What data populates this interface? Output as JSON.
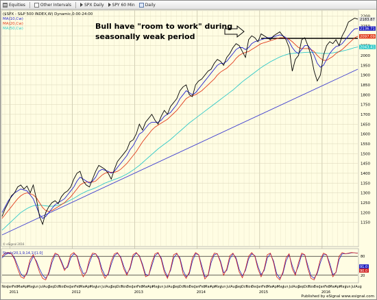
{
  "toolbar": {
    "items": [
      {
        "icon": "list-icon",
        "label": "Equities"
      },
      {
        "icon": "interval-icon",
        "label": "Other Intervals"
      },
      {
        "icon": "chart-icon",
        "label": "SPX Daily"
      },
      {
        "icon": "chart-icon",
        "label": "SPY 60 Min"
      },
      {
        "icon": "calendar-icon",
        "label": "Daily"
      }
    ]
  },
  "legend": {
    "symbol": "($SPX - S&P 500 INDEX,W) Dynamic,0:00-24:00",
    "ma1": "MA(10,Cw)",
    "ma2": "MA(20,Cw)",
    "ma3": "MA(50,Cw)"
  },
  "annotation": {
    "line1": "Bull have \"room to work\" during",
    "line2": "seasonally weak period"
  },
  "copyright": "© eSignal 2016",
  "oscillator_label": "Stoch(20,1,9,14,1)[1.0]",
  "footer": "Published by eSignal  www.esignal.com",
  "colors": {
    "price": "#000000",
    "ma10": "#2020d0",
    "ma20": "#e03a1a",
    "ma50": "#2ec8c8",
    "trendline": "#3a3ad0",
    "osc_k": "#d02020",
    "osc_d": "#2020c0",
    "background": "#fffde3"
  },
  "chart_data": {
    "type": "line",
    "y_axis_ticks": [
      1150,
      1200,
      1250,
      1300,
      1350,
      1400,
      1450,
      1500,
      1550,
      1600,
      1650,
      1700,
      1750,
      1800,
      1850,
      1900,
      1950,
      2000,
      2050,
      2100,
      2150,
      2200
    ],
    "ylim": [
      1030,
      2230
    ],
    "x_month_labels": [
      "Nov",
      "Jan",
      "Feb",
      "Mar",
      "Apr",
      "May",
      "Jun",
      "Jul",
      "Aug",
      "Sep",
      "Oct",
      "Nov",
      "Dec",
      "Jan",
      "Feb",
      "Mar",
      "Apr",
      "May",
      "Jun",
      "Jul",
      "Aug",
      "Sep",
      "Oct",
      "Nov",
      "Dec",
      "Jan",
      "Feb",
      "Mar",
      "Apr",
      "May",
      "Jun",
      "Jul",
      "Aug",
      "Sep",
      "Oct",
      "Nov",
      "Dec",
      "Jan",
      "Feb",
      "Mar",
      "Apr",
      "May",
      "Jun",
      "Jul",
      "Aug",
      "Sep",
      "Oct",
      "Nov",
      "Dec",
      "Jan",
      "Feb",
      "Mar",
      "Apr",
      "May",
      "Jun",
      "Jul",
      "Aug",
      "Sep",
      "Oct",
      "Nov",
      "Dec",
      "Jan",
      "Feb",
      "Mar",
      "Apr",
      "May",
      "Jun",
      "Jul",
      "Aug"
    ],
    "x_year_labels": [
      "2011",
      "2012",
      "2013",
      "2014",
      "2015",
      "2016"
    ],
    "price_badges": [
      {
        "label": "2183.87",
        "color": "#e9e9e9",
        "text_color": "#000000",
        "value": 2184
      },
      {
        "label": "2136.71",
        "color": "#2020c0",
        "text_color": "#ffffff",
        "value": 2137
      },
      {
        "label": "2097.09",
        "color": "#e03a1a",
        "text_color": "#ffffff",
        "value": 2097
      },
      {
        "label": "2043.41",
        "color": "#2ec8c8",
        "text_color": "#ffffff",
        "value": 2043
      }
    ],
    "series": [
      {
        "name": "$SPX",
        "values": [
          1180,
          1220,
          1250,
          1285,
          1300,
          1330,
          1340,
          1320,
          1335,
          1300,
          1340,
          1270,
          1180,
          1140,
          1200,
          1230,
          1250,
          1260,
          1245,
          1280,
          1300,
          1310,
          1330,
          1370,
          1400,
          1410,
          1360,
          1340,
          1330,
          1370,
          1410,
          1440,
          1430,
          1420,
          1400,
          1370,
          1420,
          1460,
          1480,
          1500,
          1520,
          1560,
          1570,
          1600,
          1650,
          1620,
          1660,
          1680,
          1700,
          1670,
          1650,
          1690,
          1720,
          1700,
          1740,
          1760,
          1780,
          1820,
          1840,
          1850,
          1800,
          1790,
          1850,
          1870,
          1880,
          1900,
          1920,
          1930,
          1960,
          1980,
          1970,
          1950,
          1990,
          2010,
          2040,
          2060,
          2050,
          2020,
          1990,
          2080,
          2100,
          2090,
          2070,
          2110,
          2100,
          2090,
          2080,
          2100,
          2110,
          2120,
          2100,
          2080,
          2040,
          1920,
          1980,
          2000,
          2080,
          2090,
          2050,
          2000,
          1920,
          1870,
          1900,
          2000,
          2050,
          2070,
          2060,
          2080,
          2050,
          2100,
          2130,
          2170,
          2180,
          2190,
          2185
        ]
      },
      {
        "name": "MA(10,Cw)",
        "values": [
          1200,
          1230,
          1260,
          1280,
          1300,
          1310,
          1320,
          1315,
          1310,
          1290,
          1270,
          1230,
          1190,
          1170,
          1180,
          1200,
          1220,
          1240,
          1250,
          1260,
          1270,
          1290,
          1310,
          1330,
          1360,
          1380,
          1370,
          1360,
          1350,
          1360,
          1380,
          1410,
          1420,
          1415,
          1410,
          1400,
          1410,
          1430,
          1450,
          1470,
          1490,
          1520,
          1540,
          1570,
          1600,
          1610,
          1630,
          1650,
          1660,
          1660,
          1660,
          1670,
          1690,
          1700,
          1710,
          1730,
          1750,
          1780,
          1800,
          1820,
          1810,
          1800,
          1810,
          1830,
          1850,
          1870,
          1890,
          1910,
          1930,
          1950,
          1960,
          1960,
          1970,
          1990,
          2010,
          2030,
          2040,
          2040,
          2030,
          2040,
          2060,
          2070,
          2075,
          2080,
          2085,
          2090,
          2090,
          2095,
          2100,
          2105,
          2100,
          2090,
          2070,
          2040,
          2020,
          2010,
          2030,
          2050,
          2050,
          2030,
          2000,
          1960,
          1940,
          1950,
          1980,
          2010,
          2030,
          2045,
          2050,
          2060,
          2080,
          2100,
          2120,
          2135,
          2137
        ]
      },
      {
        "name": "MA(20,Cw)",
        "values": [
          1170,
          1190,
          1210,
          1230,
          1250,
          1270,
          1285,
          1295,
          1300,
          1295,
          1290,
          1275,
          1250,
          1225,
          1210,
          1205,
          1210,
          1220,
          1230,
          1240,
          1250,
          1265,
          1280,
          1300,
          1320,
          1340,
          1350,
          1355,
          1355,
          1355,
          1360,
          1375,
          1390,
          1400,
          1405,
          1405,
          1405,
          1410,
          1420,
          1435,
          1450,
          1470,
          1490,
          1510,
          1535,
          1560,
          1580,
          1600,
          1620,
          1635,
          1645,
          1655,
          1665,
          1675,
          1690,
          1705,
          1720,
          1740,
          1760,
          1780,
          1790,
          1795,
          1800,
          1810,
          1820,
          1835,
          1850,
          1865,
          1880,
          1900,
          1915,
          1925,
          1935,
          1950,
          1965,
          1985,
          2000,
          2010,
          2015,
          2020,
          2030,
          2040,
          2050,
          2060,
          2065,
          2070,
          2075,
          2080,
          2085,
          2090,
          2090,
          2088,
          2082,
          2070,
          2055,
          2040,
          2035,
          2035,
          2035,
          2030,
          2020,
          2000,
          1985,
          1975,
          1975,
          1985,
          1995,
          2010,
          2020,
          2030,
          2045,
          2060,
          2075,
          2090,
          2097
        ]
      },
      {
        "name": "MA(50,Cw)",
        "values": [
          1110,
          1125,
          1140,
          1155,
          1170,
          1185,
          1200,
          1210,
          1220,
          1228,
          1234,
          1238,
          1238,
          1236,
          1234,
          1232,
          1232,
          1234,
          1238,
          1242,
          1248,
          1256,
          1264,
          1272,
          1282,
          1292,
          1300,
          1308,
          1314,
          1320,
          1326,
          1334,
          1342,
          1350,
          1356,
          1362,
          1368,
          1374,
          1380,
          1388,
          1396,
          1406,
          1416,
          1428,
          1440,
          1454,
          1468,
          1482,
          1496,
          1510,
          1524,
          1536,
          1548,
          1560,
          1572,
          1586,
          1600,
          1614,
          1628,
          1642,
          1656,
          1668,
          1680,
          1692,
          1704,
          1716,
          1728,
          1740,
          1752,
          1764,
          1776,
          1788,
          1800,
          1812,
          1824,
          1838,
          1852,
          1866,
          1878,
          1890,
          1902,
          1914,
          1926,
          1938,
          1948,
          1958,
          1968,
          1976,
          1984,
          1992,
          1998,
          2004,
          2008,
          2010,
          2012,
          2013,
          2014,
          2015,
          2016,
          2016,
          2015,
          2013,
          2011,
          2010,
          2010,
          2011,
          2013,
          2016,
          2019,
          2022,
          2026,
          2030,
          2035,
          2040,
          2043
        ]
      }
    ],
    "oscillator": {
      "ylim": [
        0,
        100
      ],
      "levels": [
        20,
        80
      ],
      "k": [
        80,
        90,
        92,
        88,
        70,
        40,
        15,
        10,
        30,
        70,
        85,
        60,
        30,
        10,
        5,
        30,
        70,
        90,
        85,
        60,
        35,
        50,
        85,
        92,
        80,
        40,
        15,
        30,
        70,
        90,
        88,
        70,
        30,
        10,
        25,
        65,
        88,
        92,
        75,
        40,
        20,
        45,
        85,
        92,
        80,
        50,
        15,
        20,
        60,
        88,
        92,
        70,
        30,
        10,
        40,
        85,
        90,
        70,
        25,
        10,
        30,
        75,
        92,
        85,
        40,
        8,
        20,
        70,
        90,
        88,
        60,
        20,
        40,
        82,
        90,
        70,
        30,
        12,
        40,
        80,
        92,
        80,
        40,
        15,
        40,
        85,
        90,
        60,
        15,
        5,
        30,
        75,
        88,
        40,
        20,
        60,
        90,
        85,
        40,
        10,
        5,
        30,
        70,
        90,
        85,
        50,
        15,
        30,
        80,
        92,
        88,
        90,
        92,
        91,
        90
      ],
      "d": [
        75,
        85,
        90,
        88,
        75,
        50,
        25,
        15,
        25,
        60,
        80,
        65,
        40,
        20,
        10,
        25,
        60,
        85,
        85,
        65,
        40,
        45,
        75,
        88,
        82,
        50,
        25,
        28,
        60,
        85,
        88,
        75,
        40,
        18,
        22,
        55,
        82,
        90,
        78,
        48,
        25,
        40,
        78,
        90,
        82,
        55,
        22,
        20,
        50,
        82,
        90,
        75,
        38,
        15,
        35,
        75,
        88,
        75,
        35,
        15,
        25,
        65,
        88,
        85,
        50,
        15,
        18,
        60,
        85,
        88,
        65,
        28,
        35,
        72,
        88,
        75,
        38,
        18,
        35,
        72,
        88,
        82,
        48,
        22,
        35,
        75,
        88,
        65,
        25,
        10,
        25,
        65,
        85,
        50,
        25,
        50,
        85,
        85,
        50,
        18,
        10,
        25,
        60,
        85,
        85,
        58,
        22,
        28,
        70,
        88,
        88,
        89,
        91,
        91,
        90
      ]
    }
  }
}
